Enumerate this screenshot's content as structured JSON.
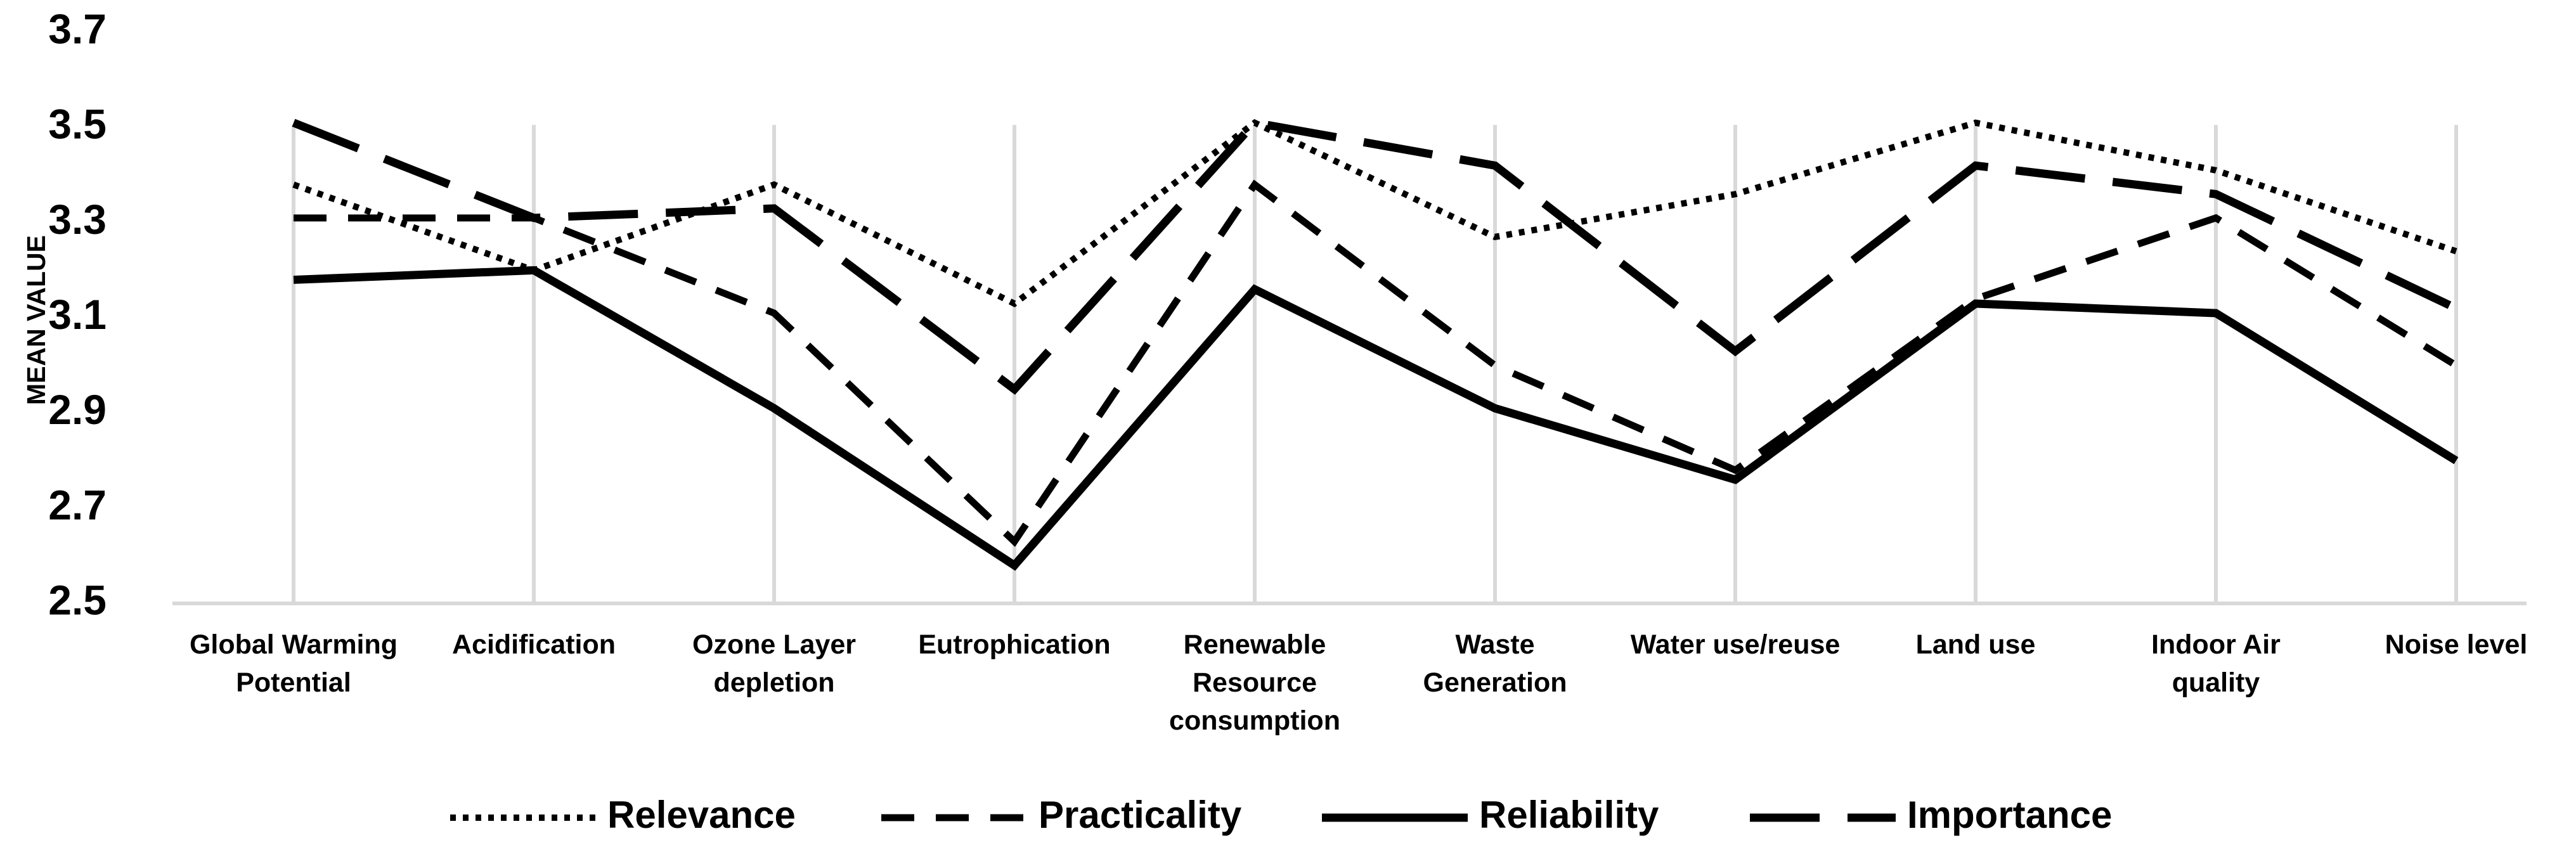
{
  "chart_data": {
    "type": "line",
    "title": "",
    "xlabel": "",
    "ylabel": "MEAN VALUE",
    "ylim": [
      2.5,
      3.7
    ],
    "yticks": [
      "2.5",
      "2.7",
      "2.9",
      "3.1",
      "3.3",
      "3.5",
      "3.7"
    ],
    "categories": [
      [
        "Global Warming",
        "Potential"
      ],
      [
        "Acidification"
      ],
      [
        "Ozone Layer",
        "depletion"
      ],
      [
        "Eutrophication"
      ],
      [
        "Renewable",
        "Resource",
        "consumption"
      ],
      [
        "Waste",
        "Generation"
      ],
      [
        "Water use/reuse"
      ],
      [
        "Land use"
      ],
      [
        "Indoor Air",
        "quality"
      ],
      [
        "Noise level"
      ]
    ],
    "legend_position": "bottom",
    "series": [
      {
        "name": "Relevance",
        "style": "dotted",
        "values": [
          3.38,
          3.2,
          3.38,
          3.13,
          3.51,
          3.27,
          3.36,
          3.51,
          3.41,
          3.24
        ]
      },
      {
        "name": "Practicality",
        "style": "dashed",
        "values": [
          3.31,
          3.31,
          3.11,
          2.63,
          3.38,
          3.0,
          2.78,
          3.14,
          3.31,
          3.0
        ]
      },
      {
        "name": "Reliability",
        "style": "solid",
        "values": [
          3.18,
          3.2,
          2.91,
          2.58,
          3.16,
          2.91,
          2.76,
          3.13,
          3.11,
          2.8
        ]
      },
      {
        "name": "Importance",
        "style": "longdash",
        "values": [
          3.51,
          3.31,
          3.33,
          2.95,
          3.51,
          3.42,
          3.03,
          3.42,
          3.36,
          3.12
        ]
      }
    ]
  }
}
